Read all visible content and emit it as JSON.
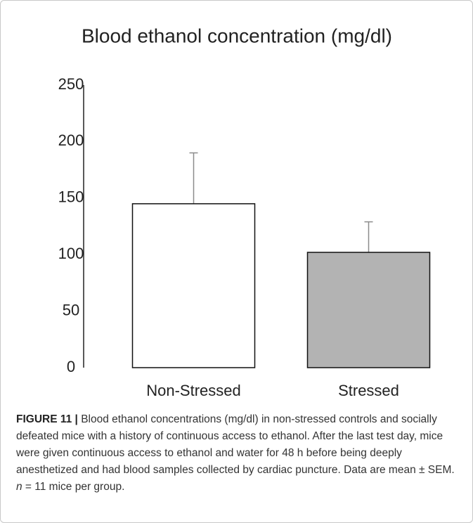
{
  "chart_data": {
    "type": "bar",
    "title": "Blood ethanol concentration (mg/dl)",
    "categories": [
      "Non-Stressed",
      "Stressed"
    ],
    "values": [
      145,
      102
    ],
    "errors": [
      45,
      27
    ],
    "colors": [
      "#ffffff",
      "#b3b3b3"
    ],
    "error_color": "#8c8c8c",
    "ylim": [
      0,
      250
    ],
    "yticks": [
      0,
      50,
      100,
      150,
      200,
      250
    ],
    "grid": false
  },
  "caption": {
    "label": "FIGURE 11 |",
    "text": " Blood ethanol concentrations (mg/dl) in non-stressed controls and socially defeated mice with a history of continuous access to ethanol. After the last test day, mice were given continuous access to ethanol and water for 48 h before being deeply anesthetized and had blood samples collected by cardiac puncture. Data are mean ± SEM. ",
    "italic": "n",
    "end": " = 11 mice per group."
  }
}
